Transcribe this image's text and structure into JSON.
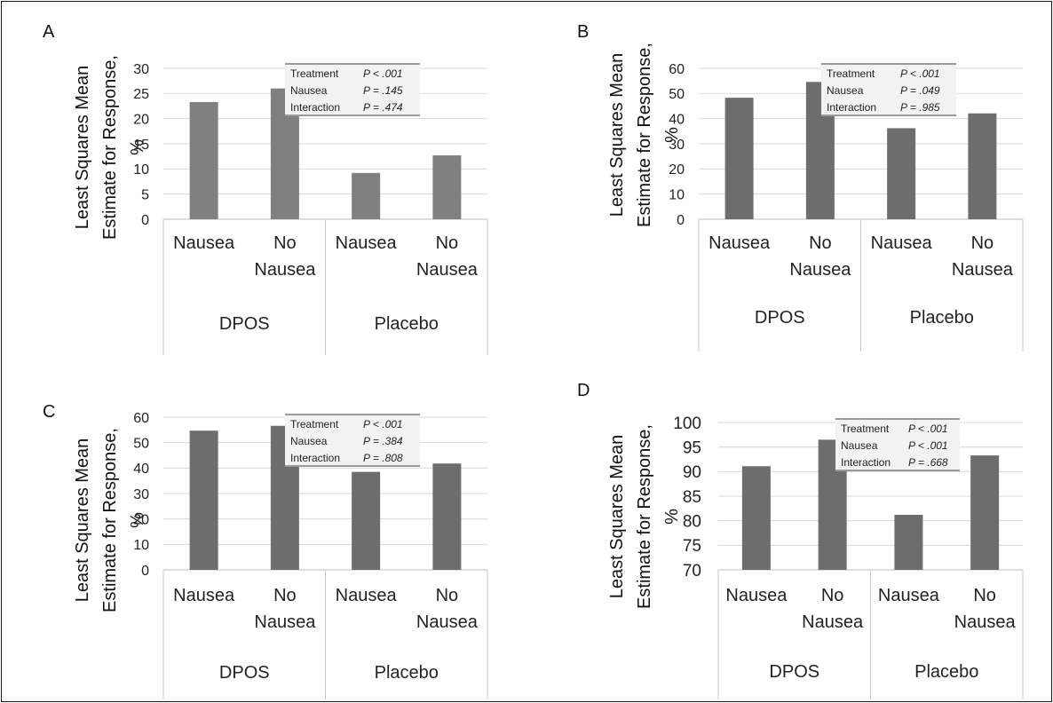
{
  "chart_data": [
    {
      "type": "bar",
      "panel": "A",
      "ylabel": [
        "Least Squares Mean",
        "Estimate for Response,",
        "%"
      ],
      "ylim": [
        0,
        30
      ],
      "yticks": [
        0,
        5,
        10,
        15,
        20,
        25,
        30
      ],
      "groups": [
        "DPOS",
        "Placebo"
      ],
      "categories": [
        [
          "Nausea"
        ],
        [
          "No",
          "Nausea"
        ],
        [
          "Nausea"
        ],
        [
          "No",
          "Nausea"
        ]
      ],
      "values": [
        23.3,
        26.0,
        9.2,
        12.7
      ],
      "bar_color": "#808080",
      "stats": [
        {
          "term": "Treatment",
          "p": "P < .001"
        },
        {
          "term": "Nausea",
          "p": "P = .145"
        },
        {
          "term": "Interaction",
          "p": "P = .474"
        }
      ]
    },
    {
      "type": "bar",
      "panel": "B",
      "ylabel": [
        "Least Squares Mean",
        "Estimate for Response,",
        "%"
      ],
      "ylim": [
        0,
        60
      ],
      "yticks": [
        0,
        10,
        20,
        30,
        40,
        50,
        60
      ],
      "groups": [
        "DPOS",
        "Placebo"
      ],
      "categories": [
        [
          "Nausea"
        ],
        [
          "No",
          "Nausea"
        ],
        [
          "Nausea"
        ],
        [
          "No",
          "Nausea"
        ]
      ],
      "values": [
        48.3,
        54.6,
        36.2,
        42.1
      ],
      "bar_color": "#6d6d6d",
      "stats": [
        {
          "term": "Treatment",
          "p": "P < .001"
        },
        {
          "term": "Nausea",
          "p": "P = .049"
        },
        {
          "term": "Interaction",
          "p": "P = .985"
        }
      ]
    },
    {
      "type": "bar",
      "panel": "C",
      "ylabel": [
        "Least Squares Mean",
        "Estimate for Response,",
        "%"
      ],
      "ylim": [
        0,
        60
      ],
      "yticks": [
        0,
        10,
        20,
        30,
        40,
        50,
        60
      ],
      "groups": [
        "DPOS",
        "Placebo"
      ],
      "categories": [
        [
          "Nausea"
        ],
        [
          "No",
          "Nausea"
        ],
        [
          "Nausea"
        ],
        [
          "No",
          "Nausea"
        ]
      ],
      "values": [
        54.7,
        56.6,
        38.5,
        41.8
      ],
      "bar_color": "#6d6d6d",
      "stats": [
        {
          "term": "Treatment",
          "p": "P < .001"
        },
        {
          "term": "Nausea",
          "p": "P = .384"
        },
        {
          "term": "Interaction",
          "p": "P = .808"
        }
      ]
    },
    {
      "type": "bar",
      "panel": "D",
      "ylabel": [
        "Least Squares Mean",
        "Estimate for Response,",
        "%"
      ],
      "ylim": [
        70,
        100
      ],
      "yticks": [
        70,
        75,
        80,
        85,
        90,
        95,
        100
      ],
      "groups": [
        "DPOS",
        "Placebo"
      ],
      "categories": [
        [
          "Nausea"
        ],
        [
          "No",
          "Nausea"
        ],
        [
          "Nausea"
        ],
        [
          "No",
          "Nausea"
        ]
      ],
      "values": [
        91.1,
        96.5,
        81.2,
        93.3
      ],
      "bar_color": "#6d6d6d",
      "stats": [
        {
          "term": "Treatment",
          "p": "P < .001"
        },
        {
          "term": "Nausea",
          "p": "P < .001"
        },
        {
          "term": "Interaction",
          "p": "P = .668"
        }
      ]
    }
  ]
}
